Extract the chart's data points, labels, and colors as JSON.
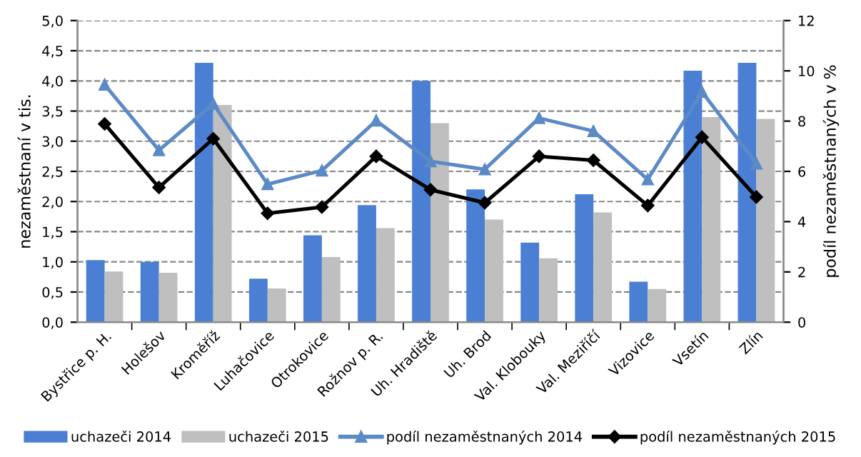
{
  "chart_data": {
    "type": "bar",
    "ylabel": "nezaměstnaní v tis.",
    "y2label": "podíl nezaměstnaných v %",
    "categories": [
      "Bystřice p. H.",
      "Holešov",
      "Kroměříž",
      "Luhačovice",
      "Otrokovice",
      "Rožnov p. R.",
      "Uh. Hradiště",
      "Uh. Brod",
      "Val. Klobouky",
      "Val. Meziříčí",
      "Vizovice",
      "Vsetín",
      "Zlín"
    ],
    "series": [
      {
        "name": "uchazeči 2014",
        "color": "#4a7fd4",
        "values": [
          1.03,
          1.0,
          4.3,
          0.72,
          1.44,
          1.94,
          4.0,
          2.2,
          1.32,
          2.12,
          0.67,
          4.17,
          4.3
        ]
      },
      {
        "name": "uchazeči 2015",
        "color": "#bfbfbf",
        "values": [
          0.84,
          0.82,
          3.6,
          0.56,
          1.08,
          1.56,
          3.3,
          1.7,
          1.06,
          1.82,
          0.55,
          3.4,
          3.37
        ]
      },
      {
        "name": "podíl nezaměstnaných 2014",
        "type": "line",
        "axis": "y2",
        "marker": "triangle",
        "color": "#5b8ac6",
        "values": [
          9.45,
          6.84,
          8.69,
          5.49,
          6.03,
          8.02,
          6.4,
          6.08,
          8.12,
          7.6,
          5.68,
          9.16,
          6.31
        ]
      },
      {
        "name": "podíl nezaměstnaných 2015",
        "type": "line",
        "axis": "y2",
        "marker": "diamond",
        "color": "#000000",
        "values": [
          7.89,
          5.36,
          7.3,
          4.33,
          4.58,
          6.6,
          5.27,
          4.75,
          6.6,
          6.44,
          4.64,
          7.36,
          4.98
        ]
      }
    ],
    "ylim": [
      0,
      5
    ],
    "yticks": [
      {
        "value": 0,
        "label": "0,0"
      },
      {
        "value": 0.5,
        "label": "0,5"
      },
      {
        "value": 1,
        "label": "1,0"
      },
      {
        "value": 1.5,
        "label": "1,5"
      },
      {
        "value": 2,
        "label": "2,0"
      },
      {
        "value": 2.5,
        "label": "2,5"
      },
      {
        "value": 3,
        "label": "3,0"
      },
      {
        "value": 3.5,
        "label": "3,5"
      },
      {
        "value": 4,
        "label": "4,0"
      },
      {
        "value": 4.5,
        "label": "4,5"
      },
      {
        "value": 5,
        "label": "5,0"
      }
    ],
    "y2lim": [
      0,
      12
    ],
    "y2ticks": [
      0,
      2,
      4,
      6,
      8,
      10,
      12
    ],
    "grid": "y",
    "legend": "bottom",
    "line_style": "solid"
  }
}
